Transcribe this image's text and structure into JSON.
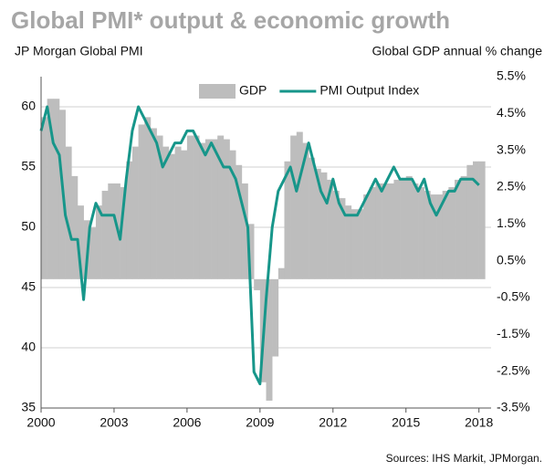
{
  "chart_data": {
    "type": "bar-line",
    "title": "Global PMI* output & economic growth",
    "y_label": "JP Morgan Global PMI",
    "y2_label": "Global GDP annual % change",
    "source": "Sources: IHS Markit, JPMorgan.",
    "x": [
      2000,
      2000.25,
      2000.5,
      2000.75,
      2001,
      2001.25,
      2001.5,
      2001.75,
      2002,
      2002.25,
      2002.5,
      2002.75,
      2003,
      2003.25,
      2003.5,
      2003.75,
      2004,
      2004.25,
      2004.5,
      2004.75,
      2005,
      2005.25,
      2005.5,
      2005.75,
      2006,
      2006.25,
      2006.5,
      2006.75,
      2007,
      2007.25,
      2007.5,
      2007.75,
      2008,
      2008.25,
      2008.5,
      2008.75,
      2009,
      2009.25,
      2009.5,
      2009.75,
      2010,
      2010.25,
      2010.5,
      2010.75,
      2011,
      2011.25,
      2011.5,
      2011.75,
      2012,
      2012.25,
      2012.5,
      2012.75,
      2013,
      2013.25,
      2013.5,
      2013.75,
      2014,
      2014.25,
      2014.5,
      2014.75,
      2015,
      2015.25,
      2015.5,
      2015.75,
      2016,
      2016.25,
      2016.5,
      2016.75,
      2017,
      2017.25,
      2017.5,
      2017.75,
      2018
    ],
    "series": [
      {
        "name": "GDP",
        "color": "#bdbdbd",
        "axis": "y2",
        "kind": "bar",
        "values": [
          4.4,
          4.9,
          4.9,
          4.6,
          3.6,
          2.8,
          2.0,
          1.6,
          1.4,
          2.0,
          2.4,
          2.6,
          2.6,
          2.5,
          3.2,
          3.6,
          4.2,
          4.4,
          4.1,
          3.9,
          3.6,
          3.4,
          3.6,
          3.5,
          3.9,
          3.9,
          3.7,
          3.8,
          3.8,
          3.9,
          3.8,
          3.5,
          3.1,
          2.6,
          1.5,
          -0.3,
          -2.8,
          -3.3,
          -2.1,
          0.3,
          3.2,
          3.9,
          4.0,
          3.7,
          3.3,
          3.0,
          2.9,
          2.7,
          2.4,
          2.2,
          2.0,
          1.9,
          1.9,
          2.3,
          2.5,
          2.6,
          2.6,
          2.6,
          2.7,
          2.7,
          2.8,
          2.6,
          2.5,
          2.4,
          2.3,
          2.3,
          2.4,
          2.5,
          2.7,
          2.8,
          3.1,
          3.2,
          3.2
        ]
      },
      {
        "name": "PMI Output Index",
        "color": "#17968a",
        "axis": "y",
        "kind": "line",
        "values": [
          58,
          60,
          57,
          56,
          51,
          49,
          49,
          44,
          50,
          52,
          51,
          51,
          51,
          49,
          54,
          58,
          60,
          59,
          58,
          57,
          55,
          56,
          57,
          57,
          58,
          58,
          57,
          56,
          57,
          56,
          55,
          55,
          54,
          52,
          50,
          38,
          37,
          44,
          50,
          53,
          54,
          55,
          53,
          55,
          57,
          55,
          53,
          52,
          54,
          52,
          51,
          51,
          51,
          52,
          53,
          54,
          53,
          54,
          55,
          54,
          54,
          54,
          53,
          54,
          52,
          51,
          52,
          53,
          53,
          54,
          54,
          54,
          53.5
        ]
      }
    ],
    "xlim": [
      2000,
      2018.5
    ],
    "xticks": [
      2000,
      2003,
      2006,
      2009,
      2012,
      2015,
      2018
    ],
    "ylim": [
      35,
      62.5
    ],
    "yticks": [
      35,
      40,
      45,
      50,
      55,
      60
    ],
    "y2lim": [
      -3.5,
      5.5
    ],
    "y2ticks": [
      {
        "value": -3.5,
        "label": "-3.5%"
      },
      {
        "value": -2.5,
        "label": "-2.5%"
      },
      {
        "value": -1.5,
        "label": "-1.5%"
      },
      {
        "value": -0.5,
        "label": "-0.5%"
      },
      {
        "value": 0.5,
        "label": "0.5%"
      },
      {
        "value": 1.5,
        "label": "1.5%"
      },
      {
        "value": 2.5,
        "label": "2.5%"
      },
      {
        "value": 3.5,
        "label": "3.5%"
      },
      {
        "value": 4.5,
        "label": "4.5%"
      },
      {
        "value": 5.5,
        "label": "5.5%"
      }
    ],
    "grid": true,
    "legend": "top"
  }
}
